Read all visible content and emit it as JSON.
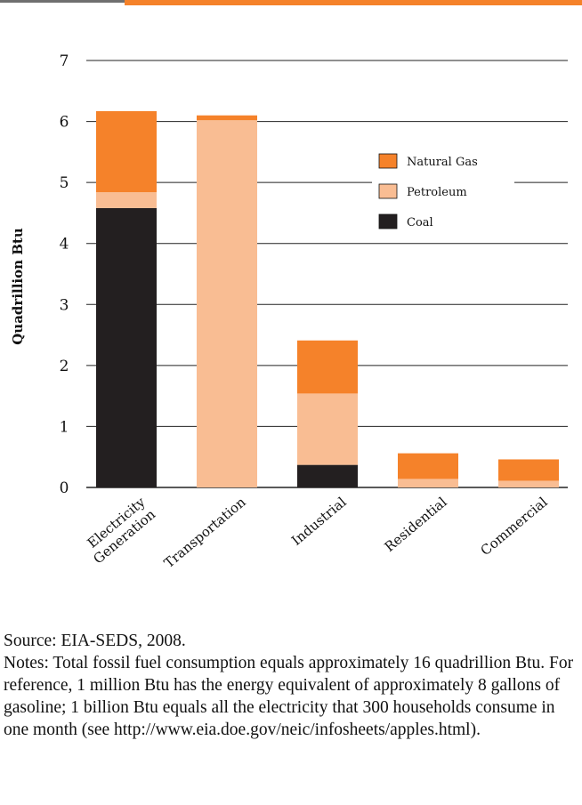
{
  "colors": {
    "natural_gas": "#f5822a",
    "petroleum": "#f9bd93",
    "coal": "#231f20",
    "gridline": "#222222",
    "accent_rule": "#f5822a",
    "gray_rule": "#6f6f6f"
  },
  "chart_data": {
    "type": "bar",
    "stacked": true,
    "ylabel": "Quadrillion Btu",
    "ylim": [
      0,
      7
    ],
    "yticks": [
      0,
      1,
      2,
      3,
      4,
      5,
      6,
      7
    ],
    "grid": true,
    "legend_position": "upper-right",
    "categories": [
      {
        "label": [
          "Electricity",
          "Generation"
        ]
      },
      {
        "label": [
          "Transportation"
        ]
      },
      {
        "label": [
          "Industrial"
        ]
      },
      {
        "label": [
          "Residential"
        ]
      },
      {
        "label": [
          "Commercial"
        ]
      }
    ],
    "series": [
      {
        "name": "Coal",
        "color_key": "coal",
        "values": [
          4.58,
          0,
          0.37,
          0,
          0
        ]
      },
      {
        "name": "Petroleum",
        "color_key": "petroleum",
        "values": [
          0.26,
          6.02,
          1.17,
          0.14,
          0.11
        ]
      },
      {
        "name": "Natural Gas",
        "color_key": "natural_gas",
        "values": [
          1.33,
          0.08,
          0.87,
          0.42,
          0.35
        ]
      }
    ],
    "legend_order": [
      "Natural Gas",
      "Petroleum",
      "Coal"
    ]
  },
  "notes": {
    "source": "Source: EIA-SEDS, 2008.",
    "text": "Notes: Total fossil fuel consumption equals approximately 16 quadrillion Btu. For reference, 1 million Btu has the energy equivalent of approximately 8 gallons of gasoline; 1 billion Btu equals all the electricity that 300 households consume in one month (see http://www.eia.doe.gov/neic/infosheets/apples.html)."
  }
}
